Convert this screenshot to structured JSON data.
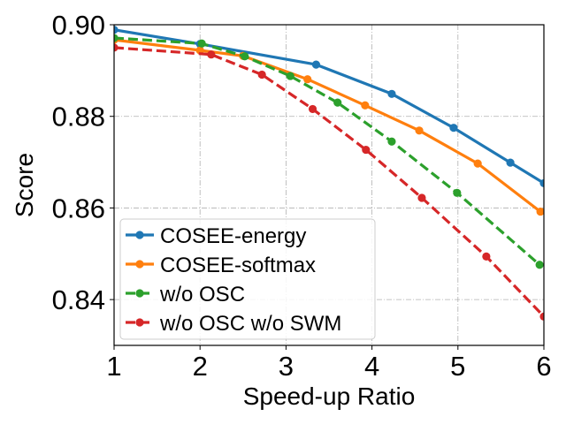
{
  "chart_data": {
    "type": "line",
    "title": "",
    "xlabel": "Speed-up Ratio",
    "ylabel": "Score",
    "xlim": [
      1,
      6
    ],
    "ylim": [
      0.83,
      0.9
    ],
    "xticks": [
      1,
      2,
      3,
      4,
      5,
      6
    ],
    "xtick_labels": [
      "1",
      "2",
      "3",
      "4",
      "5",
      "6"
    ],
    "yticks": [
      0.84,
      0.86,
      0.88,
      0.9
    ],
    "ytick_labels": [
      "0.84",
      "0.86",
      "0.88",
      "0.90"
    ],
    "grid": true,
    "legend_position": "lower-left",
    "series": [
      {
        "name": "COSEE-energy",
        "color": "#1f77b4",
        "dashed": false,
        "points": [
          [
            1.0,
            0.8989
          ],
          [
            2.0,
            0.8958
          ],
          [
            3.35,
            0.8913
          ],
          [
            4.23,
            0.8849
          ],
          [
            4.95,
            0.8775
          ],
          [
            5.61,
            0.8699
          ],
          [
            6.0,
            0.8654
          ]
        ]
      },
      {
        "name": "COSEE-softmax",
        "color": "#ff7f0e",
        "dashed": false,
        "points": [
          [
            1.0,
            0.8967
          ],
          [
            2.0,
            0.8944
          ],
          [
            2.5,
            0.8932
          ],
          [
            3.25,
            0.8881
          ],
          [
            3.92,
            0.8824
          ],
          [
            4.55,
            0.8769
          ],
          [
            5.23,
            0.8697
          ],
          [
            5.96,
            0.8592
          ]
        ]
      },
      {
        "name": "w/o OSC",
        "color": "#2ca02c",
        "dashed": true,
        "points": [
          [
            1.0,
            0.8971
          ],
          [
            2.02,
            0.8959
          ],
          [
            2.52,
            0.8931
          ],
          [
            3.05,
            0.8888
          ],
          [
            3.6,
            0.883
          ],
          [
            4.23,
            0.8745
          ],
          [
            4.99,
            0.8633
          ],
          [
            5.95,
            0.8476
          ]
        ]
      },
      {
        "name": "w/o OSC w/o SWM",
        "color": "#d62728",
        "dashed": true,
        "points": [
          [
            1.0,
            0.895
          ],
          [
            2.13,
            0.8935
          ],
          [
            2.72,
            0.8891
          ],
          [
            3.31,
            0.8816
          ],
          [
            3.93,
            0.8727
          ],
          [
            4.58,
            0.8622
          ],
          [
            5.33,
            0.8494
          ],
          [
            6.0,
            0.8363
          ]
        ]
      }
    ]
  }
}
